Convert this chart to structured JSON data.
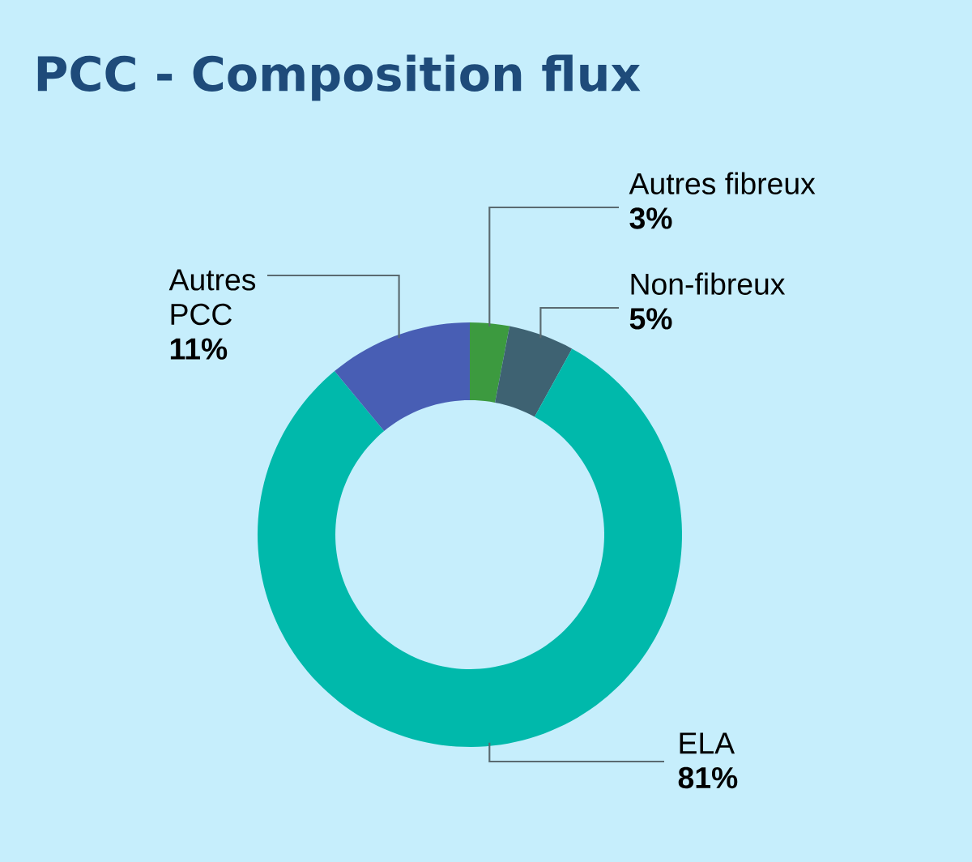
{
  "chart_data": {
    "type": "donut",
    "title": "PCC - Composition flux",
    "categories": [
      "Autres fibreux",
      "Non-fibreux",
      "ELA",
      "Autres PCC"
    ],
    "values": [
      3,
      5,
      81,
      11
    ],
    "value_labels": [
      "3%",
      "5%",
      "81%",
      "11%"
    ],
    "colors": [
      "#3c9a3f",
      "#3e6272",
      "#00b9ab",
      "#485eb4"
    ]
  }
}
